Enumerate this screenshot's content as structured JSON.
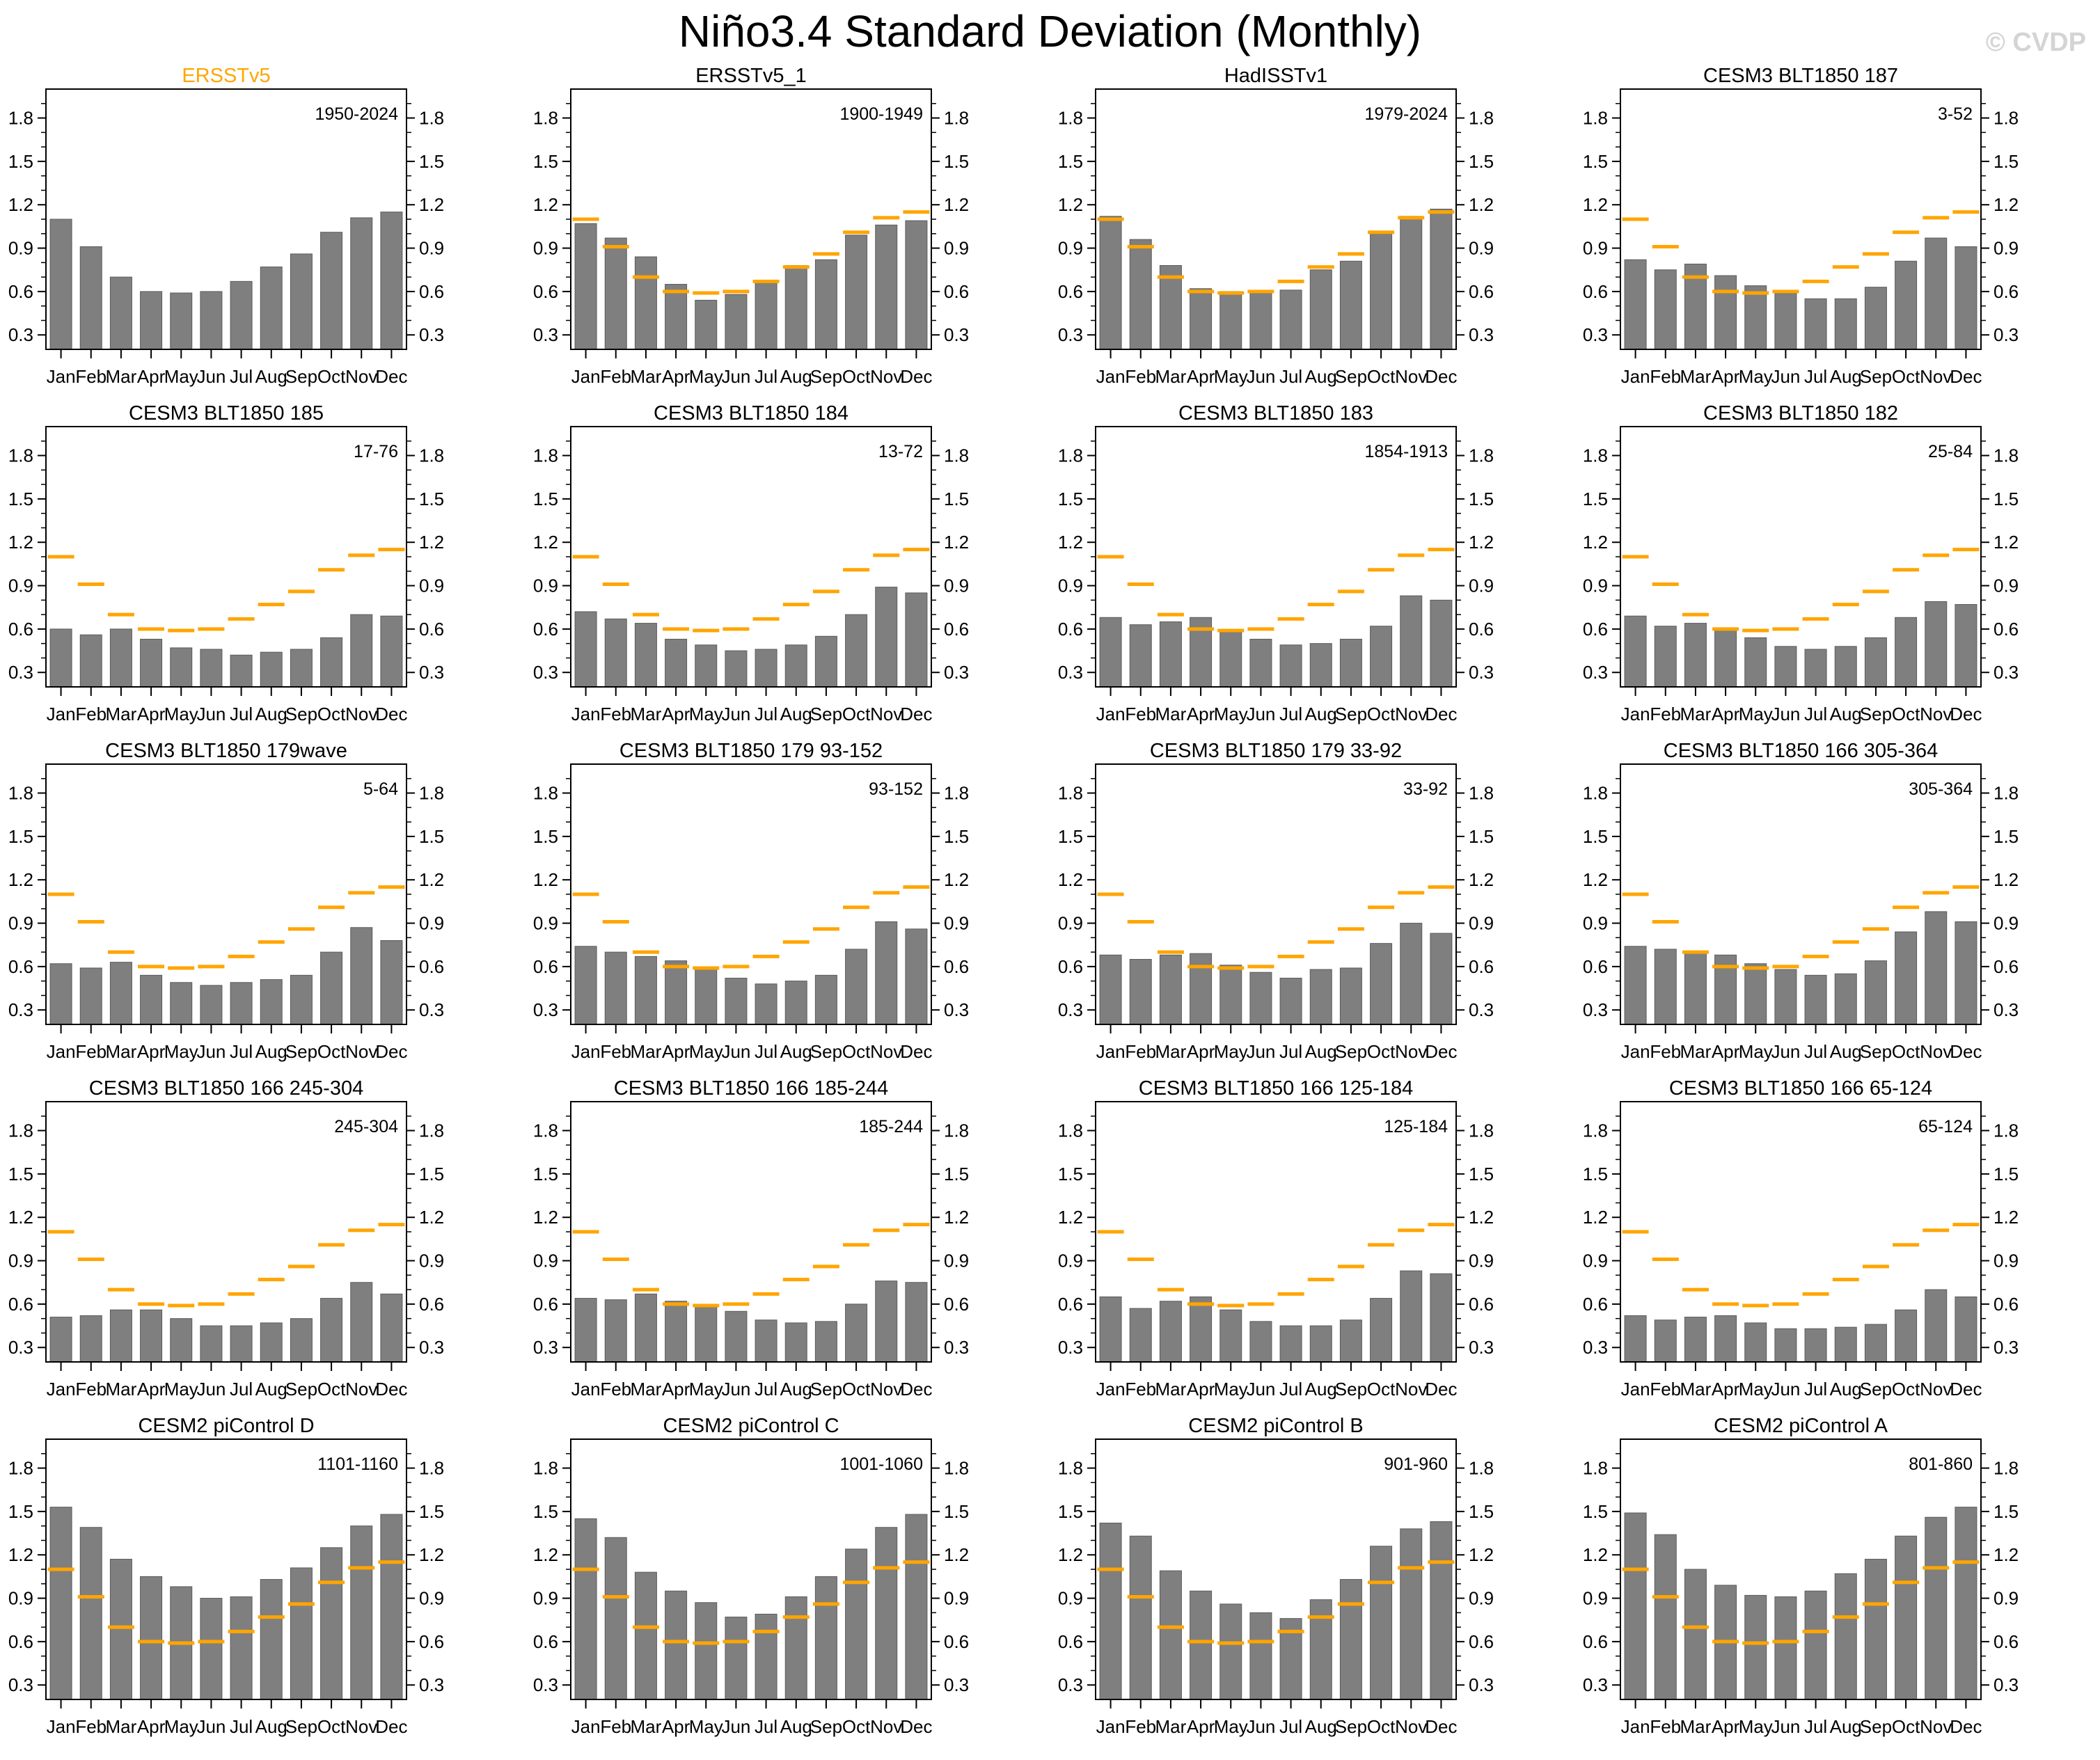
{
  "page": {
    "title": "Niño3.4 Standard Deviation (Monthly)",
    "watermark": "© CVDP"
  },
  "colors": {
    "bar_fill": "#7f7f7f",
    "bar_edge": "#5c5c5c",
    "reference_line": "#ffa500",
    "reference_title": "#ffa500",
    "axis": "#000000",
    "watermark": "#d4d4d4"
  },
  "axis": {
    "ylim": [
      0.2,
      2.0
    ],
    "y_major_ticks": [
      0.3,
      0.6,
      0.9,
      1.2,
      1.5,
      1.8
    ],
    "y_minor_ticks": [
      0.4,
      0.5,
      0.7,
      0.8,
      1.0,
      1.1,
      1.3,
      1.4,
      1.6,
      1.7,
      1.9
    ],
    "grid": false,
    "legend": "none"
  },
  "reference_series": {
    "name": "ERSSTv5",
    "values": [
      1.1,
      0.91,
      0.7,
      0.6,
      0.59,
      0.6,
      0.67,
      0.77,
      0.86,
      1.01,
      1.11,
      1.15
    ]
  },
  "chart_data": {
    "type": "bar",
    "categories": [
      "Jan",
      "Feb",
      "Mar",
      "Apr",
      "May",
      "Jun",
      "Jul",
      "Aug",
      "Sep",
      "Oct",
      "Nov",
      "Dec"
    ],
    "panels": [
      {
        "title": "ERSSTv5",
        "range": "1950-2024",
        "title_is_reference": true,
        "show_reference": false,
        "values": [
          1.1,
          0.91,
          0.7,
          0.6,
          0.59,
          0.6,
          0.67,
          0.77,
          0.86,
          1.01,
          1.11,
          1.15
        ]
      },
      {
        "title": "ERSSTv5_1",
        "range": "1900-1949",
        "title_is_reference": false,
        "show_reference": true,
        "values": [
          1.07,
          0.97,
          0.84,
          0.65,
          0.54,
          0.58,
          0.66,
          0.78,
          0.82,
          0.99,
          1.06,
          1.09
        ]
      },
      {
        "title": "HadISSTv1",
        "range": "1979-2024",
        "title_is_reference": false,
        "show_reference": true,
        "values": [
          1.12,
          0.96,
          0.78,
          0.62,
          0.6,
          0.6,
          0.61,
          0.75,
          0.81,
          1.0,
          1.12,
          1.17
        ]
      },
      {
        "title": "CESM3 BLT1850 187",
        "range": "3-52",
        "title_is_reference": false,
        "show_reference": true,
        "values": [
          0.82,
          0.75,
          0.79,
          0.71,
          0.64,
          0.59,
          0.55,
          0.55,
          0.63,
          0.81,
          0.97,
          0.91
        ]
      },
      {
        "title": "CESM3 BLT1850 185",
        "range": "17-76",
        "title_is_reference": false,
        "show_reference": true,
        "values": [
          0.6,
          0.56,
          0.6,
          0.53,
          0.47,
          0.46,
          0.42,
          0.44,
          0.46,
          0.54,
          0.7,
          0.69
        ]
      },
      {
        "title": "CESM3 BLT1850 184",
        "range": "13-72",
        "title_is_reference": false,
        "show_reference": true,
        "values": [
          0.72,
          0.67,
          0.64,
          0.53,
          0.49,
          0.45,
          0.46,
          0.49,
          0.55,
          0.7,
          0.89,
          0.85
        ]
      },
      {
        "title": "CESM3 BLT1850 183",
        "range": "1854-1913",
        "title_is_reference": false,
        "show_reference": true,
        "values": [
          0.68,
          0.63,
          0.65,
          0.68,
          0.58,
          0.53,
          0.49,
          0.5,
          0.53,
          0.62,
          0.83,
          0.8
        ]
      },
      {
        "title": "CESM3 BLT1850 182",
        "range": "25-84",
        "title_is_reference": false,
        "show_reference": true,
        "values": [
          0.69,
          0.62,
          0.64,
          0.6,
          0.54,
          0.48,
          0.46,
          0.48,
          0.54,
          0.68,
          0.79,
          0.77
        ]
      },
      {
        "title": "CESM3 BLT1850 179wave",
        "range": "5-64",
        "title_is_reference": false,
        "show_reference": true,
        "values": [
          0.62,
          0.59,
          0.63,
          0.54,
          0.49,
          0.47,
          0.49,
          0.51,
          0.54,
          0.7,
          0.87,
          0.78
        ]
      },
      {
        "title": "CESM3 BLT1850 179 93-152",
        "range": "93-152",
        "title_is_reference": false,
        "show_reference": true,
        "values": [
          0.74,
          0.7,
          0.67,
          0.64,
          0.58,
          0.52,
          0.48,
          0.5,
          0.54,
          0.72,
          0.91,
          0.86
        ]
      },
      {
        "title": "CESM3 BLT1850 179 33-92",
        "range": "33-92",
        "title_is_reference": false,
        "show_reference": true,
        "values": [
          0.68,
          0.65,
          0.68,
          0.69,
          0.61,
          0.56,
          0.52,
          0.58,
          0.59,
          0.76,
          0.9,
          0.83
        ]
      },
      {
        "title": "CESM3 BLT1850 166 305-364",
        "range": "305-364",
        "title_is_reference": false,
        "show_reference": true,
        "values": [
          0.74,
          0.72,
          0.7,
          0.68,
          0.62,
          0.58,
          0.54,
          0.55,
          0.64,
          0.84,
          0.98,
          0.91
        ]
      },
      {
        "title": "CESM3 BLT1850 166 245-304",
        "range": "245-304",
        "title_is_reference": false,
        "show_reference": true,
        "values": [
          0.51,
          0.52,
          0.56,
          0.56,
          0.5,
          0.45,
          0.45,
          0.47,
          0.5,
          0.64,
          0.75,
          0.67
        ]
      },
      {
        "title": "CESM3 BLT1850 166 185-244",
        "range": "185-244",
        "title_is_reference": false,
        "show_reference": true,
        "values": [
          0.64,
          0.63,
          0.67,
          0.62,
          0.58,
          0.55,
          0.49,
          0.47,
          0.48,
          0.6,
          0.76,
          0.75
        ]
      },
      {
        "title": "CESM3 BLT1850 166 125-184",
        "range": "125-184",
        "title_is_reference": false,
        "show_reference": true,
        "values": [
          0.65,
          0.57,
          0.62,
          0.65,
          0.56,
          0.48,
          0.45,
          0.45,
          0.49,
          0.64,
          0.83,
          0.81
        ]
      },
      {
        "title": "CESM3 BLT1850 166 65-124",
        "range": "65-124",
        "title_is_reference": false,
        "show_reference": true,
        "values": [
          0.52,
          0.49,
          0.51,
          0.52,
          0.47,
          0.43,
          0.43,
          0.44,
          0.46,
          0.56,
          0.7,
          0.65
        ]
      },
      {
        "title": "CESM2 piControl D",
        "range": "1101-1160",
        "title_is_reference": false,
        "show_reference": true,
        "values": [
          1.53,
          1.39,
          1.17,
          1.05,
          0.98,
          0.9,
          0.91,
          1.03,
          1.11,
          1.25,
          1.4,
          1.48
        ]
      },
      {
        "title": "CESM2 piControl C",
        "range": "1001-1060",
        "title_is_reference": false,
        "show_reference": true,
        "values": [
          1.45,
          1.32,
          1.08,
          0.95,
          0.87,
          0.77,
          0.79,
          0.91,
          1.05,
          1.24,
          1.39,
          1.48
        ]
      },
      {
        "title": "CESM2 piControl B",
        "range": "901-960",
        "title_is_reference": false,
        "show_reference": true,
        "values": [
          1.42,
          1.33,
          1.09,
          0.95,
          0.86,
          0.8,
          0.76,
          0.89,
          1.03,
          1.26,
          1.38,
          1.43
        ]
      },
      {
        "title": "CESM2 piControl A",
        "range": "801-860",
        "title_is_reference": false,
        "show_reference": true,
        "values": [
          1.49,
          1.34,
          1.1,
          0.99,
          0.92,
          0.91,
          0.95,
          1.07,
          1.17,
          1.33,
          1.46,
          1.53
        ]
      }
    ]
  }
}
